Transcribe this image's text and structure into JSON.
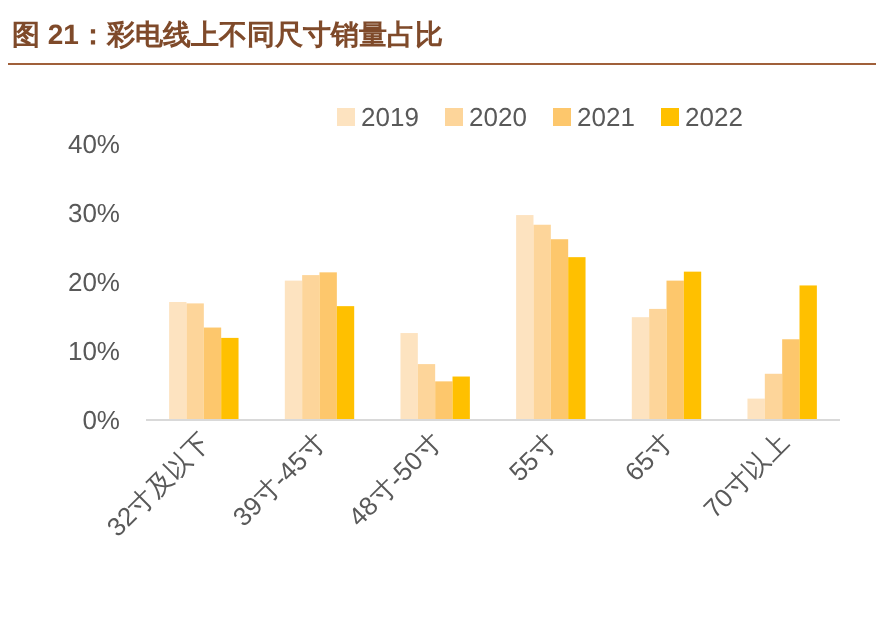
{
  "chart_data": {
    "type": "bar",
    "title": "图 21：彩电线上不同尺寸销量占比",
    "categories": [
      "32寸及以下",
      "39寸-45寸",
      "48寸-50寸",
      "55寸",
      "65寸",
      "70寸以上"
    ],
    "series": [
      {
        "name": "2019",
        "color": "#fde3c0",
        "values": [
          17.1,
          20.2,
          12.6,
          29.7,
          14.9,
          3.1
        ]
      },
      {
        "name": "2020",
        "color": "#fdd59a",
        "values": [
          16.9,
          21.0,
          8.1,
          28.3,
          16.1,
          6.7
        ]
      },
      {
        "name": "2021",
        "color": "#fdc76c",
        "values": [
          13.4,
          21.4,
          5.6,
          26.2,
          20.2,
          11.7
        ]
      },
      {
        "name": "2022",
        "color": "#ffc000",
        "values": [
          11.9,
          16.5,
          6.3,
          23.6,
          21.5,
          19.5
        ]
      }
    ],
    "ylim": [
      0,
      40
    ],
    "yticks": [
      {
        "value": 0,
        "label": "0%"
      },
      {
        "value": 10,
        "label": "10%"
      },
      {
        "value": 20,
        "label": "20%"
      },
      {
        "value": 30,
        "label": "30%"
      },
      {
        "value": 40,
        "label": "40%"
      }
    ],
    "grid": false,
    "legend": "top"
  }
}
